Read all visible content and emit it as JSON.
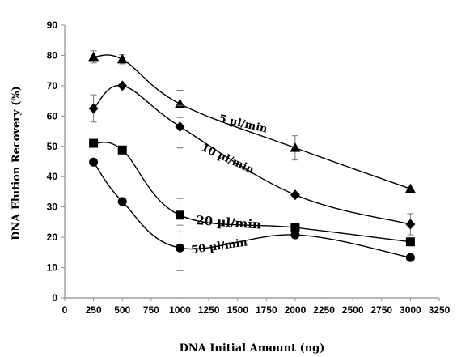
{
  "chart_data": {
    "type": "line",
    "title": "",
    "xlabel": "DNA Initial Amount (ng)",
    "ylabel": "DNA Elution Recovery (%)",
    "xlim": [
      0,
      3250
    ],
    "ylim": [
      0,
      90
    ],
    "xticks": [
      "0",
      "250",
      "500",
      "750",
      "1000",
      "1250",
      "1500",
      "1750",
      "2000",
      "2250",
      "2500",
      "2750",
      "3000",
      "3250"
    ],
    "yticks": [
      "0",
      "10",
      "20",
      "30",
      "40",
      "50",
      "60",
      "70",
      "80",
      "90"
    ],
    "grid": false,
    "legend": "none",
    "series": [
      {
        "name": "5 µl/min",
        "marker": "triangle",
        "x": [
          250,
          500,
          1000,
          2000,
          3000
        ],
        "y": [
          79.5,
          78.7,
          64,
          49.5,
          36
        ],
        "error": [
          2,
          1.5,
          4.5,
          4,
          0
        ]
      },
      {
        "name": "10 µl/min",
        "marker": "diamond",
        "x": [
          250,
          500,
          1000,
          2000,
          3000
        ],
        "y": [
          62.5,
          70,
          56.5,
          34,
          24.3
        ],
        "error": [
          4.5,
          0,
          7,
          0,
          3.5
        ]
      },
      {
        "name": "20  µl/min",
        "marker": "square",
        "x": [
          250,
          500,
          1000,
          2000,
          3000
        ],
        "y": [
          51,
          48.8,
          27.3,
          23.2,
          18.5
        ],
        "error": [
          0,
          0,
          5.5,
          0,
          0
        ]
      },
      {
        "name": "50 µl/min",
        "marker": "circle",
        "x": [
          250,
          500,
          1000,
          2000,
          3000
        ],
        "y": [
          44.8,
          31.8,
          16.5,
          20.8,
          13.3
        ],
        "error": [
          0,
          0,
          7.5,
          0,
          0
        ]
      }
    ]
  }
}
